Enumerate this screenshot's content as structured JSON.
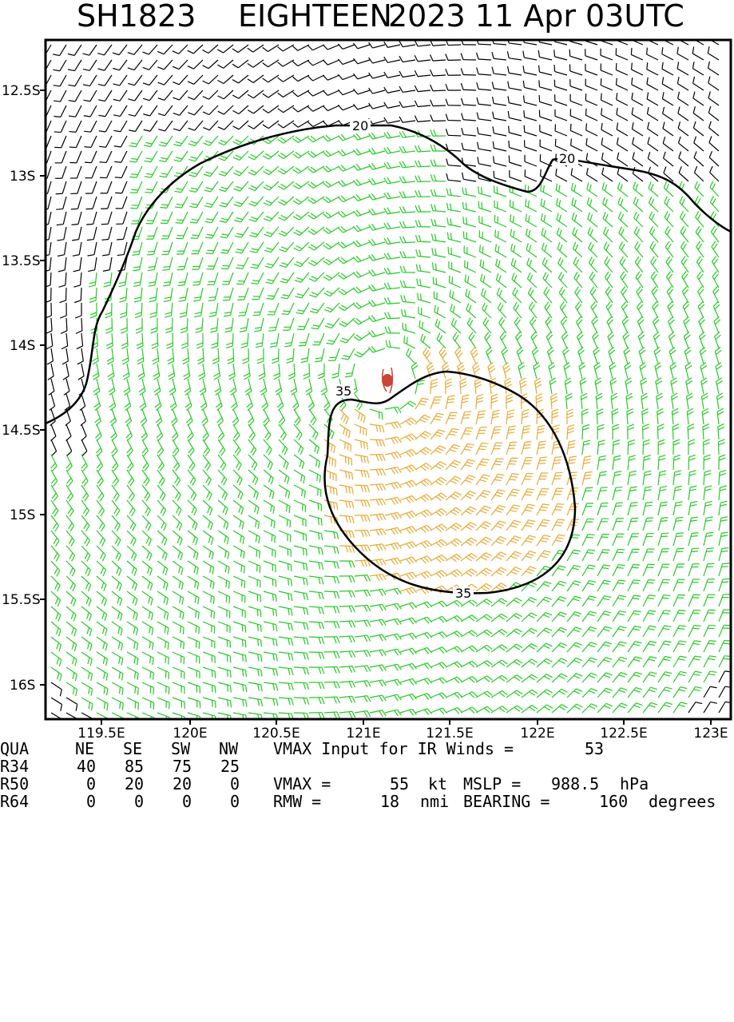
{
  "header": {
    "storm_id": "SH1823",
    "storm_name": "EIGHTEEN",
    "datetime": "2023 11 Apr 03UTC"
  },
  "map": {
    "lat_labels": [
      "12.5S",
      "13S",
      "13.5S",
      "14S",
      "14.5S",
      "15S",
      "15.5S",
      "16S"
    ],
    "lon_labels": [
      "119.5E",
      "120E",
      "120.5E",
      "121E",
      "121.5E",
      "122E",
      "122.5E",
      "123E"
    ],
    "contours": [
      {
        "value": 20,
        "labels": [
          "20",
          "20"
        ],
        "color": "#000000"
      },
      {
        "value": 35,
        "labels": [
          "35",
          "35"
        ],
        "color": "#000000"
      }
    ],
    "wind_barb_colors": {
      "weak": "#000000",
      "moderate": "#22cc22",
      "strong": "#e8a830"
    },
    "center_marker_color": "#cc4433",
    "center_icon": "storm-center-icon"
  },
  "table": {
    "headers": [
      "QUA",
      "NE",
      "SE",
      "SW",
      "NW"
    ],
    "rows": [
      {
        "label": "R34",
        "values": [
          "40",
          "85",
          "75",
          "25"
        ]
      },
      {
        "label": "R50",
        "values": [
          "0",
          "20",
          "20",
          "0"
        ]
      },
      {
        "label": "R64",
        "values": [
          "0",
          "0",
          "0",
          "0"
        ]
      }
    ],
    "vmax_input_text": "VMAX Input for IR Winds =",
    "vmax_input_value": "53",
    "vmax_label": "VMAX =",
    "vmax_value": "55",
    "vmax_unit": "kt",
    "mslp_label": "MSLP =",
    "mslp_value": "988.5",
    "mslp_unit": "hPa",
    "rmw_label": "RMW =",
    "rmw_value": "18",
    "rmw_unit": "nmi",
    "bearing_label": "BEARING =",
    "bearing_value": "160",
    "bearing_unit": "degrees"
  }
}
